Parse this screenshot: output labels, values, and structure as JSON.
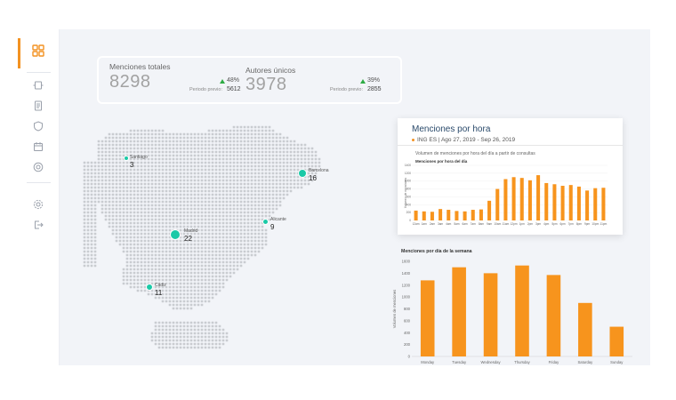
{
  "sidebar": {
    "icons": [
      "grid-icon",
      "page-transfer-icon",
      "document-icon",
      "shield-icon",
      "calendar-icon",
      "target-icon",
      "settings-icon",
      "logout-icon"
    ]
  },
  "stats": {
    "mentions_label": "Menciones  totales",
    "mentions_value": "8298",
    "mentions_change": "48%",
    "mentions_prev_label": "Periodo  previo:",
    "mentions_prev_value": "5612",
    "authors_label": "Autores únicos",
    "authors_value": "3978",
    "authors_change": "39%",
    "authors_prev_label": "Periodo  previo:",
    "authors_prev_value": "2855"
  },
  "map": {
    "cities": [
      {
        "name": "Santiago",
        "count": "3"
      },
      {
        "name": "Barcelona",
        "count": "16"
      },
      {
        "name": "Alicante",
        "count": "9"
      },
      {
        "name": "Madrid",
        "count": "22"
      },
      {
        "name": "Cádiz",
        "count": "11"
      }
    ]
  },
  "hourly_card": {
    "title": "Menciones  por  hora",
    "filter": "ING ES  |  Ago 27, 2019  -  Sep 26, 2019",
    "description": "Volumen de menciones por hora del día a partir de consultas"
  },
  "colors": {
    "accent": "#f39221",
    "bar": "#f7941d",
    "city_dot": "#1ac9a7",
    "trend_up": "#2eab45",
    "map_dot": "#c9ccd1"
  },
  "chart_data": [
    {
      "type": "bar",
      "title": "Menciones por hora del día",
      "ylabel": "Volumen de menciones",
      "ylim": [
        0,
        1400
      ],
      "yticks": [
        "1400",
        "1200",
        "1000",
        "800",
        "600",
        "400",
        "200",
        "0"
      ],
      "categories": [
        "12am",
        "1am",
        "2am",
        "3am",
        "4am",
        "5am",
        "6am",
        "7am",
        "8am",
        "9am",
        "10am",
        "11am",
        "12pm",
        "1pm",
        "2pm",
        "3pm",
        "4pm",
        "5pm",
        "6pm",
        "7pm",
        "8pm",
        "9pm",
        "10pm",
        "11pm"
      ],
      "values": [
        250,
        230,
        220,
        290,
        270,
        240,
        230,
        270,
        280,
        500,
        800,
        1050,
        1100,
        1080,
        1020,
        1150,
        950,
        920,
        880,
        900,
        860,
        760,
        820,
        830
      ],
      "grid": true
    },
    {
      "type": "bar",
      "title": "Menciones por día de la semana",
      "ylabel": "Volumen de menciones",
      "ylim": [
        0,
        1600
      ],
      "yticks": [
        "1600",
        "1400",
        "1200",
        "1000",
        "800",
        "600",
        "400",
        "200",
        "0"
      ],
      "categories": [
        "Monday",
        "Tuesday",
        "Wednesday",
        "Thursday",
        "Friday",
        "Saturday",
        "Sunday"
      ],
      "values": [
        1280,
        1500,
        1400,
        1530,
        1370,
        900,
        500
      ],
      "grid": false
    }
  ]
}
